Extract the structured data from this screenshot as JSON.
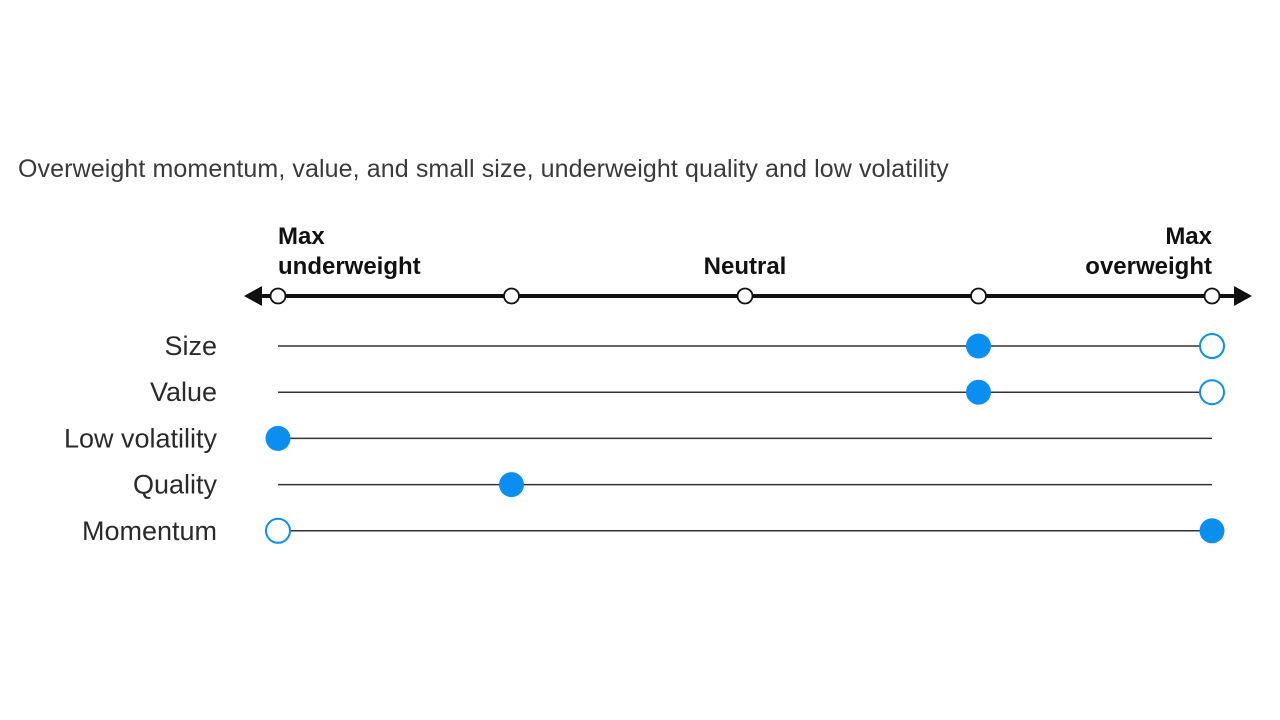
{
  "headline": "Overweight momentum, value, and small size, underweight quality and low volatility",
  "colors": {
    "current": "#0a8ef0",
    "previous_outline": "#0a8ef0",
    "axis": "#111111",
    "row_line": "#333333"
  },
  "chart_data": {
    "type": "dot-plot",
    "scale": {
      "min": 0,
      "max": 4,
      "ticks": [
        0,
        1,
        2,
        3,
        4
      ],
      "tick_labels": [
        {
          "pos": 0,
          "lines": [
            "Max",
            "underweight"
          ],
          "align": "start"
        },
        {
          "pos": 2,
          "lines": [
            "Neutral"
          ],
          "align": "middle"
        },
        {
          "pos": 4,
          "lines": [
            "Max",
            "overweight"
          ],
          "align": "end"
        }
      ]
    },
    "rows": [
      {
        "label": "Size",
        "current": 3,
        "previous": 4
      },
      {
        "label": "Value",
        "current": 3,
        "previous": 4
      },
      {
        "label": "Low volatility",
        "current": 0,
        "previous": null
      },
      {
        "label": "Quality",
        "current": 1,
        "previous": null
      },
      {
        "label": "Momentum",
        "current": 4,
        "previous": 0
      }
    ]
  }
}
